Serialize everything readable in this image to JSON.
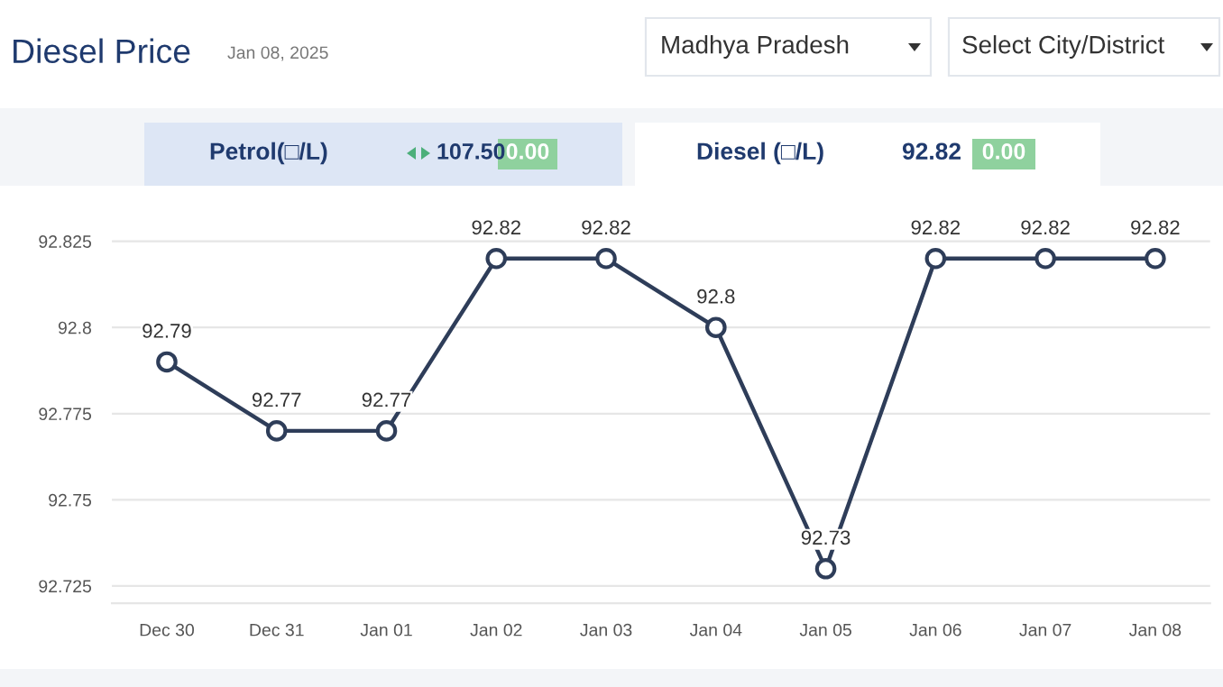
{
  "chart_data": {
    "type": "line",
    "title": "Diesel Price",
    "subtitle": "Jan 08, 2025",
    "annotations": [
      "Madhya Pradesh",
      "Select City/District",
      "Petrol(□/L)",
      "107.50",
      "0.00",
      "Diesel (□/L)",
      "92.82",
      "0.00"
    ],
    "categories": [
      "Dec 30",
      "Dec 31",
      "Jan 01",
      "Jan 02",
      "Jan 03",
      "Jan 04",
      "Jan 05",
      "Jan 06",
      "Jan 07",
      "Jan 08"
    ],
    "series": [
      {
        "color": "#2e3d59",
        "values": [
          92.79,
          92.77,
          92.77,
          92.82,
          92.82,
          92.8,
          92.73,
          92.82,
          92.82,
          92.82
        ]
      }
    ],
    "ylim": [
      92.72,
      92.84
    ],
    "yticks": [
      92.725,
      92.75,
      92.775,
      92.8,
      92.825
    ],
    "grid": "y",
    "marker": "circle",
    "line_style": "solid",
    "data_labels": true,
    "legend": false
  }
}
